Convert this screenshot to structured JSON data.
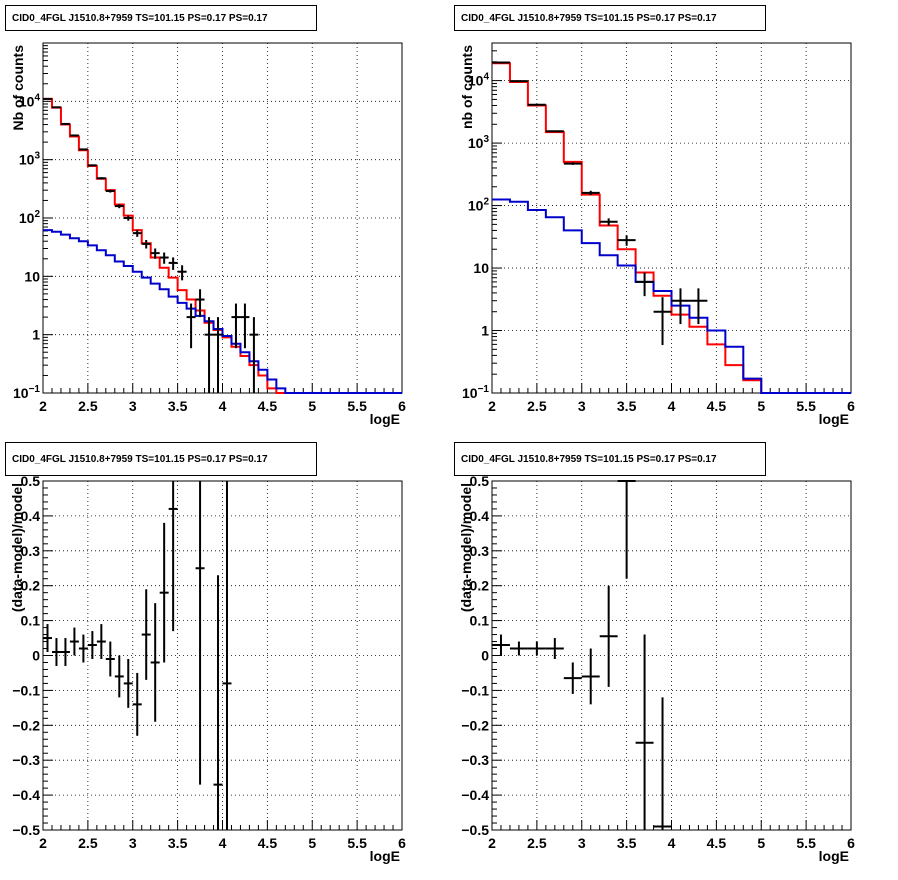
{
  "chart_data": [
    {
      "type": "histogram",
      "panel": "top-left",
      "title": "CID0_4FGL J1510.8+7959 TS=101.15 PS=0.17 PS=0.17",
      "xlabel": "logE",
      "ylabel": "Nb of counts",
      "xlim": [
        2,
        6
      ],
      "ylim": [
        0.1,
        100000
      ],
      "log_y": true,
      "grid": true,
      "x_ticks": [
        "2",
        "2.5",
        "3",
        "3.5",
        "4",
        "4.5",
        "5",
        "5.5",
        "6"
      ],
      "y_ticks": [
        {
          "v": 0.1,
          "label": "10",
          "exp": "−1"
        },
        {
          "v": 1,
          "label": "1"
        },
        {
          "v": 10,
          "label": "10"
        },
        {
          "v": 100,
          "label": "10",
          "exp": "2"
        },
        {
          "v": 1000,
          "label": "10",
          "exp": "3"
        },
        {
          "v": 10000,
          "label": "10",
          "exp": "4"
        }
      ],
      "series": [
        {
          "color": "#ff0000",
          "style": "step",
          "edges": [
            2.0,
            2.1,
            2.2,
            2.3,
            2.4,
            2.5,
            2.6,
            2.7,
            2.8,
            2.9,
            3.0,
            3.1,
            3.2,
            3.3,
            3.4,
            3.5,
            3.6,
            3.7,
            3.8,
            3.9,
            4.0,
            4.1,
            4.2,
            4.3,
            4.4,
            4.5,
            4.6,
            4.7,
            4.8,
            4.9,
            5.0,
            5.1,
            5.2,
            5.3,
            5.4,
            5.5,
            5.6,
            5.7,
            5.8,
            5.9,
            6.0
          ],
          "values": [
            11000,
            7800,
            4000,
            2500,
            1450,
            780,
            470,
            300,
            170,
            110,
            62,
            37,
            21,
            14,
            9.5,
            5.8,
            4.0,
            2.6,
            1.6,
            1.2,
            0.9,
            0.62,
            0.43,
            0.3,
            0.2,
            0.12,
            0.1,
            0.1,
            0.1,
            0.1,
            0.1,
            0.1,
            0.1,
            0.1,
            0.1,
            0.1,
            0.1,
            0.1,
            0.1,
            0.1
          ]
        },
        {
          "color": "#0000cc",
          "style": "step",
          "edges": [
            2.0,
            2.1,
            2.2,
            2.3,
            2.4,
            2.5,
            2.6,
            2.7,
            2.8,
            2.9,
            3.0,
            3.1,
            3.2,
            3.3,
            3.4,
            3.5,
            3.6,
            3.7,
            3.8,
            3.9,
            4.0,
            4.1,
            4.2,
            4.3,
            4.4,
            4.5,
            4.6,
            4.7,
            4.8,
            4.9,
            5.0,
            5.1,
            5.2,
            5.3,
            5.4,
            5.5,
            5.6,
            5.7,
            5.8,
            5.9,
            6.0
          ],
          "values": [
            62,
            58,
            52,
            45,
            40,
            34,
            28,
            23,
            18,
            15,
            12,
            9.5,
            7.5,
            6,
            4.5,
            3.5,
            2.8,
            2.1,
            1.7,
            1.25,
            0.95,
            0.7,
            0.5,
            0.35,
            0.25,
            0.17,
            0.12,
            0.1,
            0.1,
            0.1,
            0.1,
            0.1,
            0.1,
            0.1,
            0.1,
            0.1,
            0.1,
            0.1,
            0.1,
            0.1
          ]
        },
        {
          "color": "#000000",
          "style": "points",
          "points": [
            {
              "x": 2.05,
              "y": 11000,
              "dx": 0.05
            },
            {
              "x": 2.15,
              "y": 7900,
              "dx": 0.05
            },
            {
              "x": 2.25,
              "y": 4100,
              "dx": 0.05
            },
            {
              "x": 2.35,
              "y": 2600,
              "dx": 0.05
            },
            {
              "x": 2.45,
              "y": 1500,
              "dx": 0.05
            },
            {
              "x": 2.55,
              "y": 800,
              "dx": 0.05
            },
            {
              "x": 2.65,
              "y": 480,
              "dx": 0.05
            },
            {
              "x": 2.75,
              "y": 290,
              "dx": 0.05
            },
            {
              "x": 2.85,
              "y": 160,
              "dx": 0.05
            },
            {
              "x": 2.95,
              "y": 100,
              "dx": 0.05
            },
            {
              "x": 3.05,
              "y": 55,
              "dx": 0.05
            },
            {
              "x": 3.15,
              "y": 36,
              "dx": 0.05
            },
            {
              "x": 3.25,
              "y": 25,
              "dx": 0.05
            },
            {
              "x": 3.35,
              "y": 21,
              "dx": 0.05
            },
            {
              "x": 3.45,
              "y": 17,
              "dx": 0.05
            },
            {
              "x": 3.55,
              "y": 12,
              "dx": 0.05
            },
            {
              "x": 3.65,
              "y": 2,
              "dx": 0.05
            },
            {
              "x": 3.75,
              "y": 4,
              "dx": 0.05
            },
            {
              "x": 3.85,
              "y": 1,
              "dx": 0.05
            },
            {
              "x": 3.95,
              "y": 1,
              "dx": 0.05
            },
            {
              "x": 4.15,
              "y": 2,
              "dx": 0.05
            },
            {
              "x": 4.25,
              "y": 2,
              "dx": 0.05
            },
            {
              "x": 4.35,
              "y": 1,
              "dx": 0.05
            }
          ]
        }
      ]
    },
    {
      "type": "histogram",
      "panel": "top-right",
      "title": "CID0_4FGL J1510.8+7959 TS=101.15 PS=0.17 PS=0.17",
      "xlabel": "logE",
      "ylabel": "nb of counts",
      "xlim": [
        2,
        6
      ],
      "ylim": [
        0.1,
        40000
      ],
      "log_y": true,
      "grid": true,
      "x_ticks": [
        "2",
        "2.5",
        "3",
        "3.5",
        "4",
        "4.5",
        "5",
        "5.5",
        "6"
      ],
      "y_ticks": [
        {
          "v": 0.1,
          "label": "10",
          "exp": "−1"
        },
        {
          "v": 1,
          "label": "1"
        },
        {
          "v": 10,
          "label": "10"
        },
        {
          "v": 100,
          "label": "10",
          "exp": "2"
        },
        {
          "v": 1000,
          "label": "10",
          "exp": "3"
        },
        {
          "v": 10000,
          "label": "10",
          "exp": "4"
        }
      ],
      "series": [
        {
          "color": "#ff0000",
          "style": "step",
          "edges": [
            2.0,
            2.2,
            2.4,
            2.6,
            2.8,
            3.0,
            3.2,
            3.4,
            3.6,
            3.8,
            4.0,
            4.2,
            4.4,
            4.6,
            4.8,
            5.0,
            5.2,
            5.4,
            5.6,
            5.8,
            6.0
          ],
          "values": [
            19000,
            9500,
            4000,
            1500,
            500,
            150,
            48,
            20,
            8.5,
            3.6,
            1.8,
            1.15,
            0.6,
            0.28,
            0.16,
            0.1,
            0.1,
            0.1,
            0.1,
            0.1
          ]
        },
        {
          "color": "#0000cc",
          "style": "step",
          "edges": [
            2.0,
            2.2,
            2.4,
            2.6,
            2.8,
            3.0,
            3.2,
            3.4,
            3.6,
            3.8,
            4.0,
            4.2,
            4.4,
            4.6,
            4.8,
            5.0,
            5.2,
            5.4,
            5.6,
            5.8,
            6.0
          ],
          "values": [
            125,
            115,
            85,
            65,
            40,
            25,
            16,
            11,
            6,
            4.3,
            2.5,
            1.6,
            1.0,
            0.55,
            0.17,
            0.1,
            0.1,
            0.1,
            0.1,
            0.1
          ]
        },
        {
          "color": "#000000",
          "style": "points",
          "points": [
            {
              "x": 2.1,
              "y": 19500,
              "dx": 0.1
            },
            {
              "x": 2.3,
              "y": 9800,
              "dx": 0.1
            },
            {
              "x": 2.5,
              "y": 4100,
              "dx": 0.1
            },
            {
              "x": 2.7,
              "y": 1550,
              "dx": 0.1
            },
            {
              "x": 2.9,
              "y": 470,
              "dx": 0.1
            },
            {
              "x": 3.1,
              "y": 160,
              "dx": 0.1
            },
            {
              "x": 3.3,
              "y": 55,
              "dx": 0.1
            },
            {
              "x": 3.5,
              "y": 28,
              "dx": 0.1
            },
            {
              "x": 3.7,
              "y": 6,
              "dx": 0.1
            },
            {
              "x": 3.9,
              "y": 2,
              "dx": 0.1
            },
            {
              "x": 4.1,
              "y": 3,
              "dx": 0.1
            },
            {
              "x": 4.3,
              "y": 3,
              "dx": 0.1
            }
          ]
        }
      ]
    },
    {
      "type": "scatter",
      "panel": "bottom-left",
      "title": "CID0_4FGL J1510.8+7959 TS=101.15 PS=0.17 PS=0.17",
      "xlabel": "logE",
      "ylabel": "(data-model)/model",
      "xlim": [
        2,
        6
      ],
      "ylim": [
        -0.5,
        0.5
      ],
      "log_y": false,
      "grid": true,
      "x_ticks": [
        "2",
        "2.5",
        "3",
        "3.5",
        "4",
        "4.5",
        "5",
        "5.5",
        "6"
      ],
      "y_ticks": [
        {
          "v": -0.5,
          "label": "−0.5"
        },
        {
          "v": -0.4,
          "label": "−0.4"
        },
        {
          "v": -0.3,
          "label": "−0.3"
        },
        {
          "v": -0.2,
          "label": "−0.2"
        },
        {
          "v": -0.1,
          "label": "−0.1"
        },
        {
          "v": 0,
          "label": "0"
        },
        {
          "v": 0.1,
          "label": "0.1"
        },
        {
          "v": 0.2,
          "label": "0.2"
        },
        {
          "v": 0.3,
          "label": "0.3"
        },
        {
          "v": 0.4,
          "label": "0.4"
        },
        {
          "v": 0.5,
          "label": "0.5"
        }
      ],
      "series": [
        {
          "color": "#000000",
          "style": "points",
          "points": [
            {
              "x": 2.05,
              "y": 0.05,
              "dx": 0.05,
              "dy": 0.04
            },
            {
              "x": 2.15,
              "y": 0.01,
              "dx": 0.05,
              "dy": 0.04
            },
            {
              "x": 2.25,
              "y": 0.01,
              "dx": 0.05,
              "dy": 0.04
            },
            {
              "x": 2.35,
              "y": 0.04,
              "dx": 0.05,
              "dy": 0.04
            },
            {
              "x": 2.45,
              "y": 0.02,
              "dx": 0.05,
              "dy": 0.04
            },
            {
              "x": 2.55,
              "y": 0.03,
              "dx": 0.05,
              "dy": 0.04
            },
            {
              "x": 2.65,
              "y": 0.04,
              "dx": 0.05,
              "dy": 0.05
            },
            {
              "x": 2.75,
              "y": -0.01,
              "dx": 0.05,
              "dy": 0.05
            },
            {
              "x": 2.85,
              "y": -0.06,
              "dx": 0.05,
              "dy": 0.06
            },
            {
              "x": 2.95,
              "y": -0.08,
              "dx": 0.05,
              "dy": 0.07
            },
            {
              "x": 3.05,
              "y": -0.14,
              "dx": 0.05,
              "dy": 0.09
            },
            {
              "x": 3.15,
              "y": 0.06,
              "dx": 0.05,
              "dy": 0.13
            },
            {
              "x": 3.25,
              "y": -0.02,
              "dx": 0.05,
              "dy": 0.17
            },
            {
              "x": 3.35,
              "y": 0.18,
              "dx": 0.05,
              "dy": 0.2
            },
            {
              "x": 3.45,
              "y": 0.42,
              "dx": 0.05,
              "dy": 0.35
            },
            {
              "x": 3.75,
              "y": 0.25,
              "dx": 0.05,
              "dy": 0.62
            },
            {
              "x": 3.95,
              "y": -0.37,
              "dx": 0.05,
              "dy": 0.6
            },
            {
              "x": 4.05,
              "y": -0.08,
              "dx": 0.05,
              "dy": 0.6
            }
          ]
        }
      ]
    },
    {
      "type": "scatter",
      "panel": "bottom-right",
      "title": "CID0_4FGL J1510.8+7959 TS=101.15 PS=0.17 PS=0.17",
      "xlabel": "logE",
      "ylabel": "(data-model)/model",
      "xlim": [
        2,
        6
      ],
      "ylim": [
        -0.5,
        0.5
      ],
      "log_y": false,
      "grid": true,
      "x_ticks": [
        "2",
        "2.5",
        "3",
        "3.5",
        "4",
        "4.5",
        "5",
        "5.5",
        "6"
      ],
      "y_ticks": [
        {
          "v": -0.5,
          "label": "−0.5"
        },
        {
          "v": -0.4,
          "label": "−0.4"
        },
        {
          "v": -0.3,
          "label": "−0.3"
        },
        {
          "v": -0.2,
          "label": "−0.2"
        },
        {
          "v": -0.1,
          "label": "−0.1"
        },
        {
          "v": 0,
          "label": "0"
        },
        {
          "v": 0.1,
          "label": "0.1"
        },
        {
          "v": 0.2,
          "label": "0.2"
        },
        {
          "v": 0.3,
          "label": "0.3"
        },
        {
          "v": 0.4,
          "label": "0.4"
        },
        {
          "v": 0.5,
          "label": "0.5"
        }
      ],
      "series": [
        {
          "color": "#000000",
          "style": "points",
          "points": [
            {
              "x": 2.1,
              "y": 0.03,
              "dx": 0.1,
              "dy": 0.03
            },
            {
              "x": 2.3,
              "y": 0.02,
              "dx": 0.1,
              "dy": 0.02
            },
            {
              "x": 2.5,
              "y": 0.02,
              "dx": 0.1,
              "dy": 0.02
            },
            {
              "x": 2.7,
              "y": 0.02,
              "dx": 0.1,
              "dy": 0.03
            },
            {
              "x": 2.9,
              "y": -0.065,
              "dx": 0.1,
              "dy": 0.045
            },
            {
              "x": 3.1,
              "y": -0.06,
              "dx": 0.1,
              "dy": 0.08
            },
            {
              "x": 3.3,
              "y": 0.055,
              "dx": 0.1,
              "dy": 0.145
            },
            {
              "x": 3.5,
              "y": 0.5,
              "dx": 0.1,
              "dy": 0.28
            },
            {
              "x": 3.7,
              "y": -0.25,
              "dx": 0.1,
              "dy": 0.31
            },
            {
              "x": 3.9,
              "y": -0.49,
              "dx": 0.1,
              "dy": 0.37
            }
          ]
        }
      ]
    }
  ]
}
